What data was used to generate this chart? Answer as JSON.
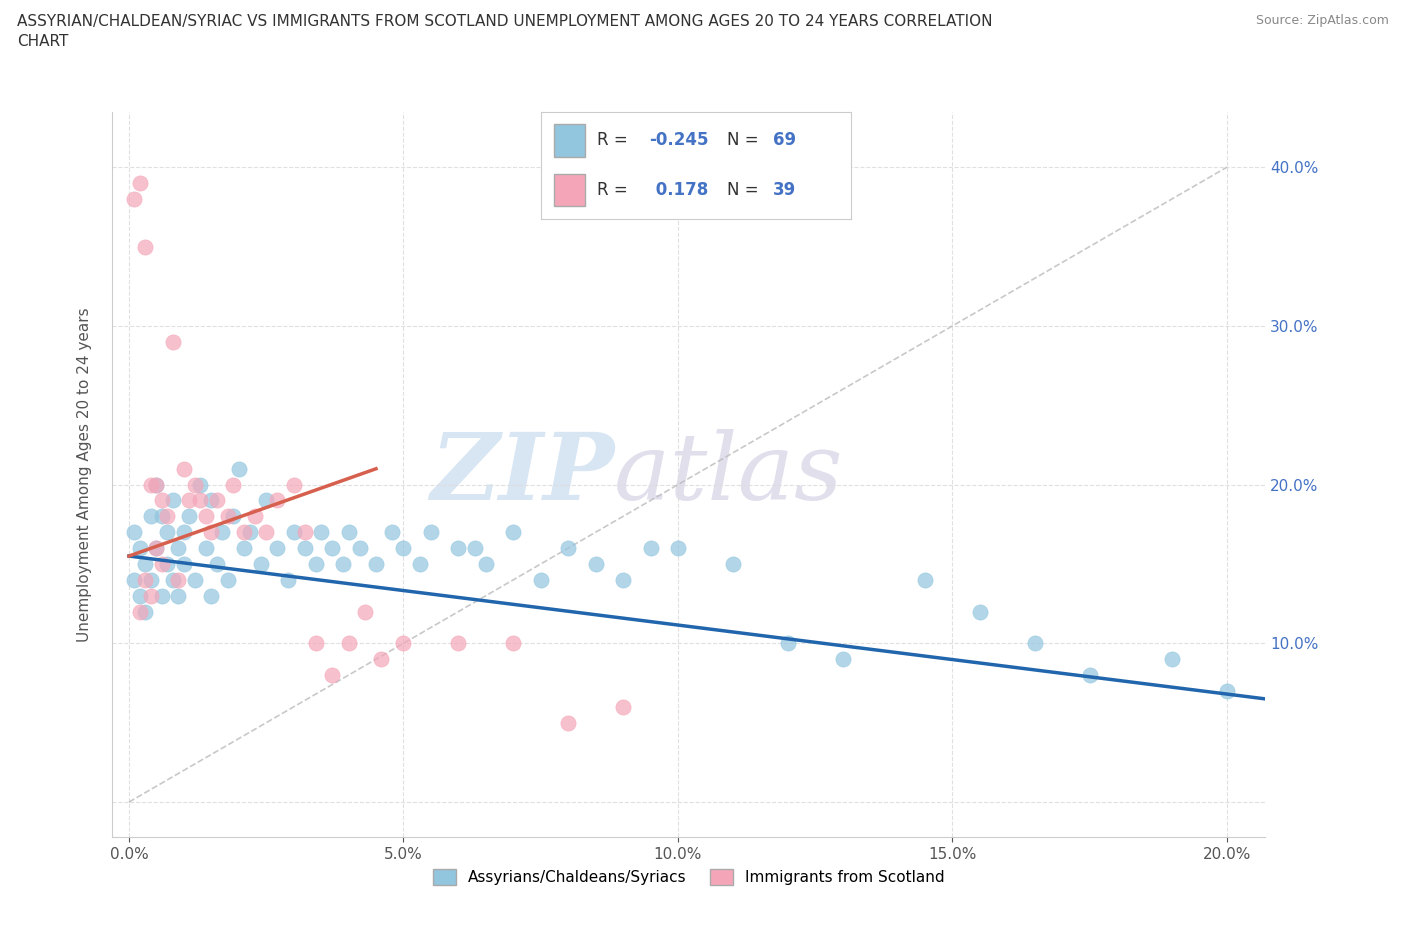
{
  "title_line1": "ASSYRIAN/CHALDEAN/SYRIAC VS IMMIGRANTS FROM SCOTLAND UNEMPLOYMENT AMONG AGES 20 TO 24 YEARS CORRELATION",
  "title_line2": "CHART",
  "source": "Source: ZipAtlas.com",
  "xlabel_ticks": [
    "0.0%",
    "5.0%",
    "10.0%",
    "15.0%",
    "20.0%"
  ],
  "ylabel_ticks_right": [
    "40.0%",
    "30.0%",
    "20.0%",
    "10.0%"
  ],
  "xlabel_ticks_vals": [
    0.0,
    0.05,
    0.1,
    0.15,
    0.2
  ],
  "ylabel_ticks_vals": [
    0.0,
    0.1,
    0.2,
    0.3,
    0.4
  ],
  "ylabel_ticks_right_vals": [
    0.4,
    0.3,
    0.2,
    0.1
  ],
  "xlim": [
    -0.003,
    0.207
  ],
  "ylim": [
    -0.022,
    0.435
  ],
  "blue_color": "#92c5de",
  "pink_color": "#f4a6b8",
  "blue_line_color": "#2166ac",
  "pink_line_color": "#d6604d",
  "diag_color": "#cccccc",
  "watermark_color_ZIP": "#b0c8e8",
  "watermark_color_atlas": "#c8c0d8",
  "legend_R_blue": "-0.245",
  "legend_N_blue": "69",
  "legend_R_pink": "0.178",
  "legend_N_pink": "39",
  "ylabel": "Unemployment Among Ages 20 to 24 years",
  "legend_label_blue": "Assyrians/Chaldeans/Syriacs",
  "legend_label_pink": "Immigrants from Scotland",
  "background_color": "#ffffff",
  "grid_color": "#dddddd",
  "blue_trend_x0": 0.0,
  "blue_trend_x1": 0.207,
  "blue_trend_y0": 0.155,
  "blue_trend_y1": 0.065,
  "pink_trend_x0": 0.0,
  "pink_trend_x1": 0.045,
  "pink_trend_y0": 0.155,
  "pink_trend_y1": 0.21
}
